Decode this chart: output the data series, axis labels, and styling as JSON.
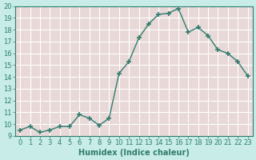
{
  "xlabel": "Humidex (Indice chaleur)",
  "ylabel": "",
  "x": [
    0,
    1,
    2,
    3,
    4,
    5,
    6,
    7,
    8,
    9,
    10,
    11,
    12,
    13,
    14,
    15,
    16,
    17,
    18,
    19,
    20,
    21,
    22,
    23
  ],
  "y": [
    9.5,
    9.8,
    9.3,
    9.5,
    9.8,
    9.8,
    10.8,
    10.5,
    9.9,
    10.5,
    14.3,
    15.3,
    17.3,
    18.5,
    19.3,
    19.4,
    19.8,
    17.8,
    18.2,
    17.5,
    16.3,
    16.0,
    15.3,
    14.1
  ],
  "line_color": "#2e7d6e",
  "marker": "+",
  "marker_size": 5,
  "marker_lw": 1.2,
  "bg_color": "#c8ece8",
  "plot_bg_color": "#e8d8d8",
  "grid_color": "#ffffff",
  "tick_color": "#2e7d6e",
  "label_color": "#2e7d6e",
  "spine_color": "#2e7d6e",
  "ylim": [
    9,
    20
  ],
  "xlim": [
    -0.5,
    23.5
  ],
  "yticks": [
    9,
    10,
    11,
    12,
    13,
    14,
    15,
    16,
    17,
    18,
    19,
    20
  ],
  "xticks": [
    0,
    1,
    2,
    3,
    4,
    5,
    6,
    7,
    8,
    9,
    10,
    11,
    12,
    13,
    14,
    15,
    16,
    17,
    18,
    19,
    20,
    21,
    22,
    23
  ],
  "linewidth": 1.0,
  "xlabel_fontsize": 7,
  "tick_fontsize": 6
}
